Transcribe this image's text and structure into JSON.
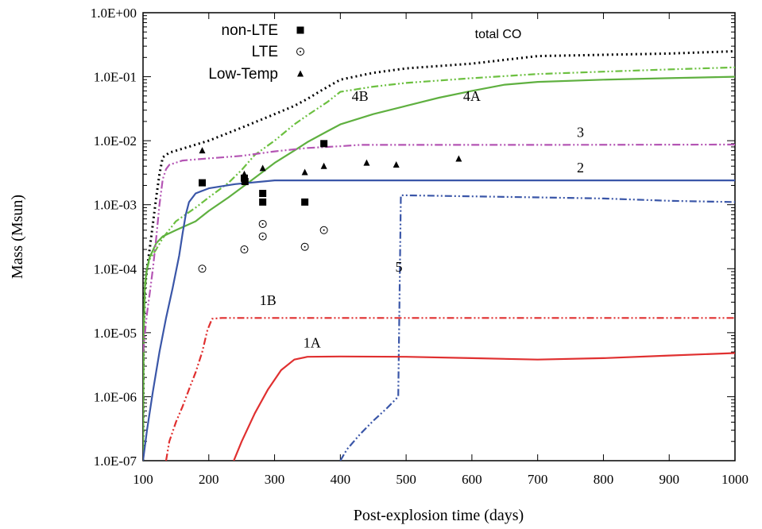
{
  "chart_data": {
    "type": "line",
    "title": "",
    "xlabel": "Post-explosion time (days)",
    "ylabel": "Mass (Msun)",
    "xlim": [
      100,
      1000
    ],
    "ylim": [
      1e-07,
      1
    ],
    "yscale": "log",
    "grid": false,
    "legend_position": "top-left",
    "x_ticks": [
      100,
      200,
      300,
      400,
      500,
      600,
      700,
      800,
      900,
      1000
    ],
    "x_tick_labels": [
      "100",
      "200",
      "300",
      "400",
      "500",
      "600",
      "700",
      "800",
      "900",
      "1000"
    ],
    "y_ticks": [
      1e-07,
      1e-06,
      1e-05,
      0.0001,
      0.001,
      0.01,
      0.1,
      1
    ],
    "y_tick_labels": [
      "1.0E-07",
      "1.0E-06",
      "1.0E-05",
      "1.0E-04",
      "1.0E-03",
      "1.0E-02",
      "1.0E-01",
      "1.0E+00"
    ],
    "series": [
      {
        "name": "total CO",
        "label_x": 640,
        "label_y": 0.4,
        "color": "#000000",
        "dash": "2,4",
        "width": 3,
        "points": [
          [
            100,
            1e-07
          ],
          [
            101,
            1e-05
          ],
          [
            103,
            5e-05
          ],
          [
            106,
            0.0001
          ],
          [
            110,
            0.0002
          ],
          [
            115,
            0.0005
          ],
          [
            120,
            0.0013
          ],
          [
            125,
            0.003
          ],
          [
            130,
            0.0055
          ],
          [
            140,
            0.0065
          ],
          [
            160,
            0.0075
          ],
          [
            200,
            0.01
          ],
          [
            250,
            0.016
          ],
          [
            300,
            0.026
          ],
          [
            330,
            0.035
          ],
          [
            350,
            0.045
          ],
          [
            370,
            0.06
          ],
          [
            400,
            0.09
          ],
          [
            450,
            0.115
          ],
          [
            500,
            0.135
          ],
          [
            600,
            0.16
          ],
          [
            700,
            0.21
          ],
          [
            800,
            0.22
          ],
          [
            900,
            0.23
          ],
          [
            1000,
            0.25
          ]
        ]
      },
      {
        "name": "4B",
        "label_x": 430,
        "label_y": 0.042,
        "color": "#6cc040",
        "dash": "9,3,2,3,2,3",
        "width": 2.2,
        "points": [
          [
            100,
            1e-07
          ],
          [
            101,
            1e-05
          ],
          [
            103,
            5e-05
          ],
          [
            106,
            0.0001
          ],
          [
            110,
            0.00014
          ],
          [
            120,
            0.0002
          ],
          [
            130,
            0.0003
          ],
          [
            150,
            0.00055
          ],
          [
            180,
            0.0009
          ],
          [
            200,
            0.0013
          ],
          [
            230,
            0.0022
          ],
          [
            250,
            0.0035
          ],
          [
            270,
            0.006
          ],
          [
            300,
            0.01
          ],
          [
            330,
            0.018
          ],
          [
            350,
            0.025
          ],
          [
            380,
            0.04
          ],
          [
            400,
            0.058
          ],
          [
            450,
            0.07
          ],
          [
            500,
            0.08
          ],
          [
            600,
            0.095
          ],
          [
            700,
            0.11
          ],
          [
            800,
            0.12
          ],
          [
            900,
            0.13
          ],
          [
            1000,
            0.14
          ]
        ]
      },
      {
        "name": "4A",
        "label_x": 600,
        "label_y": 0.042,
        "color": "#5fb040",
        "dash": "",
        "width": 2.2,
        "points": [
          [
            100,
            1e-07
          ],
          [
            101,
            1e-05
          ],
          [
            103,
            6e-05
          ],
          [
            106,
            0.0001
          ],
          [
            110,
            0.00015
          ],
          [
            120,
            0.00025
          ],
          [
            130,
            0.00032
          ],
          [
            150,
            0.0004
          ],
          [
            180,
            0.00055
          ],
          [
            200,
            0.0008
          ],
          [
            230,
            0.0013
          ],
          [
            260,
            0.0022
          ],
          [
            300,
            0.0045
          ],
          [
            330,
            0.007
          ],
          [
            350,
            0.0095
          ],
          [
            380,
            0.014
          ],
          [
            400,
            0.018
          ],
          [
            450,
            0.026
          ],
          [
            500,
            0.035
          ],
          [
            550,
            0.047
          ],
          [
            600,
            0.06
          ],
          [
            650,
            0.075
          ],
          [
            700,
            0.083
          ],
          [
            800,
            0.09
          ],
          [
            900,
            0.095
          ],
          [
            1000,
            0.1
          ]
        ]
      },
      {
        "name": "3",
        "label_x": 765,
        "label_y": 0.0115,
        "color": "#b455b4",
        "dash": "10,3,2,3,2,3",
        "width": 2.2,
        "points": [
          [
            100,
            5e-06
          ],
          [
            103,
            1e-05
          ],
          [
            106,
            2e-05
          ],
          [
            110,
            4e-05
          ],
          [
            115,
            0.0001
          ],
          [
            120,
            0.0003
          ],
          [
            125,
            0.001
          ],
          [
            130,
            0.0025
          ],
          [
            135,
            0.0036
          ],
          [
            140,
            0.0042
          ],
          [
            160,
            0.0049
          ],
          [
            200,
            0.0053
          ],
          [
            250,
            0.0058
          ],
          [
            300,
            0.0068
          ],
          [
            350,
            0.0077
          ],
          [
            400,
            0.0082
          ],
          [
            430,
            0.0086
          ],
          [
            500,
            0.0086
          ],
          [
            700,
            0.0086
          ],
          [
            1000,
            0.0087
          ]
        ]
      },
      {
        "name": "2",
        "label_x": 765,
        "label_y": 0.0032,
        "color": "#3a56a8",
        "dash": "",
        "width": 2.2,
        "points": [
          [
            100,
            1e-07
          ],
          [
            106,
            3e-07
          ],
          [
            115,
            1.2e-06
          ],
          [
            125,
            5e-06
          ],
          [
            135,
            1.7e-05
          ],
          [
            145,
            5e-05
          ],
          [
            155,
            0.00016
          ],
          [
            160,
            0.00035
          ],
          [
            165,
            0.0007
          ],
          [
            170,
            0.0011
          ],
          [
            180,
            0.0015
          ],
          [
            200,
            0.0018
          ],
          [
            240,
            0.0021
          ],
          [
            300,
            0.0024
          ],
          [
            400,
            0.0024
          ],
          [
            700,
            0.0024
          ],
          [
            1000,
            0.0024
          ]
        ]
      },
      {
        "name": "5",
        "label_x": 489,
        "label_y": 9e-05,
        "color": "#3a56a8",
        "dash": "9,3,2,3,2,3",
        "width": 2.2,
        "points": [
          [
            400,
            1e-07
          ],
          [
            410,
            1.5e-07
          ],
          [
            430,
            2.6e-07
          ],
          [
            450,
            4.2e-07
          ],
          [
            470,
            6.5e-07
          ],
          [
            488,
            1e-06
          ],
          [
            492,
            0.0014
          ],
          [
            500,
            0.0014
          ],
          [
            600,
            0.00135
          ],
          [
            700,
            0.0013
          ],
          [
            800,
            0.00125
          ],
          [
            900,
            0.00115
          ],
          [
            1000,
            0.0011
          ]
        ]
      },
      {
        "name": "1B",
        "label_x": 290,
        "label_y": 2.7e-05,
        "color": "#e03030",
        "dash": "9,3,2,3,2,3",
        "width": 2.2,
        "points": [
          [
            135,
            1e-07
          ],
          [
            140,
            2e-07
          ],
          [
            150,
            4e-07
          ],
          [
            160,
            7e-07
          ],
          [
            170,
            1.3e-06
          ],
          [
            180,
            2.4e-06
          ],
          [
            190,
            5e-06
          ],
          [
            198,
            1.1e-05
          ],
          [
            205,
            1.65e-05
          ],
          [
            220,
            1.7e-05
          ],
          [
            400,
            1.7e-05
          ],
          [
            700,
            1.7e-05
          ],
          [
            1000,
            1.7e-05
          ]
        ]
      },
      {
        "name": "1A",
        "label_x": 357,
        "label_y": 5.9e-06,
        "color": "#e03030",
        "dash": "",
        "width": 2.2,
        "points": [
          [
            238,
            1e-07
          ],
          [
            250,
            2e-07
          ],
          [
            270,
            5.5e-07
          ],
          [
            290,
            1.3e-06
          ],
          [
            310,
            2.6e-06
          ],
          [
            330,
            3.8e-06
          ],
          [
            350,
            4.2e-06
          ],
          [
            400,
            4.25e-06
          ],
          [
            500,
            4.2e-06
          ],
          [
            600,
            4e-06
          ],
          [
            700,
            3.8e-06
          ],
          [
            800,
            4e-06
          ],
          [
            900,
            4.4e-06
          ],
          [
            1000,
            4.8e-06
          ]
        ]
      }
    ],
    "markers": [
      {
        "name": "non-LTE",
        "shape": "square",
        "points": [
          [
            190,
            0.0022
          ],
          [
            254,
            0.0026
          ],
          [
            255,
            0.0023
          ],
          [
            282,
            0.0015
          ],
          [
            282,
            0.0011
          ],
          [
            346,
            0.0011
          ],
          [
            375,
            0.009
          ]
        ]
      },
      {
        "name": "LTE",
        "shape": "circle-dot",
        "points": [
          [
            190,
            0.0001
          ],
          [
            254,
            0.0002
          ],
          [
            282,
            0.0005
          ],
          [
            282,
            0.00032
          ],
          [
            346,
            0.00022
          ],
          [
            375,
            0.0004
          ]
        ]
      },
      {
        "name": "Low-Temp",
        "shape": "triangle",
        "points": [
          [
            190,
            0.007
          ],
          [
            254,
            0.003
          ],
          [
            255,
            0.0028
          ],
          [
            282,
            0.0037
          ],
          [
            346,
            0.0032
          ],
          [
            375,
            0.004
          ],
          [
            440,
            0.0045
          ],
          [
            485,
            0.0042
          ],
          [
            580,
            0.0052
          ]
        ]
      }
    ]
  }
}
